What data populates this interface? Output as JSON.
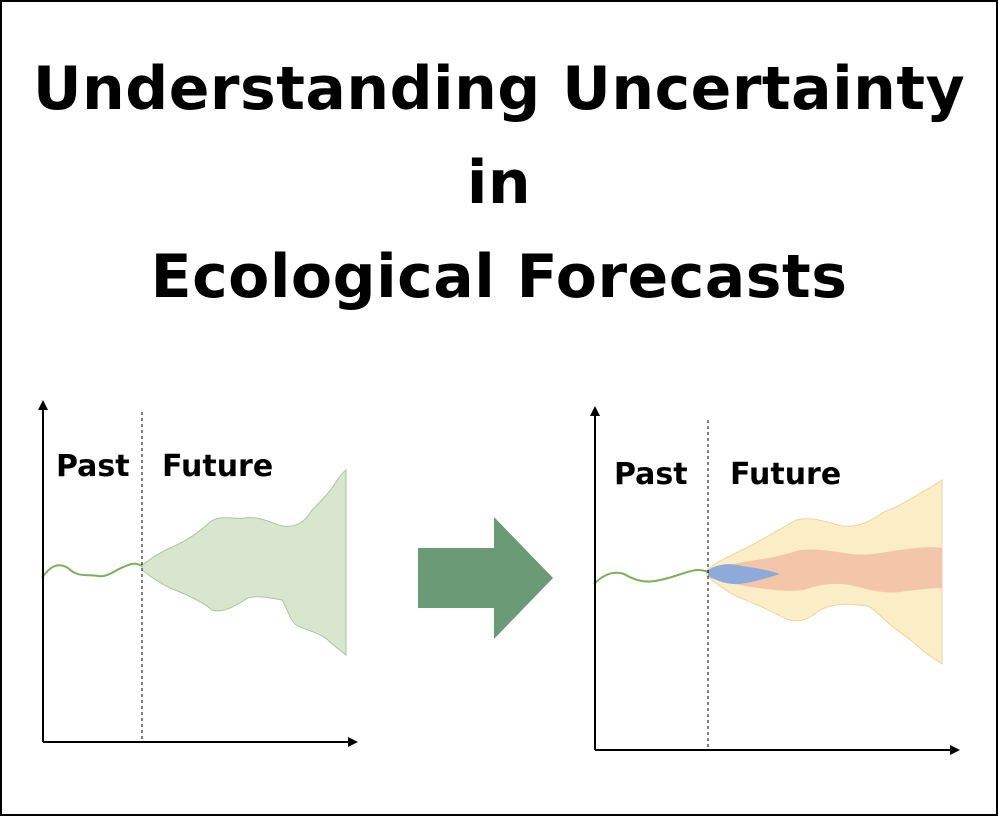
{
  "title": {
    "line1": "Understanding Uncertainty",
    "line2": "in",
    "line3": "Ecological Forecasts"
  },
  "left_panel": {
    "past_label": "Past",
    "future_label": "Future"
  },
  "right_panel": {
    "past_label": "Past",
    "future_label": "Future"
  },
  "colors": {
    "history_line": "#7cb05c",
    "left_envelope": "#d9e6cf",
    "arrow": "#6b9a76",
    "outer_envelope": "#fbeec6",
    "middle_band": "#f4c6a9",
    "early_band": "#8eaadb"
  },
  "icons": {
    "transition_arrow": "right-arrow-icon"
  }
}
